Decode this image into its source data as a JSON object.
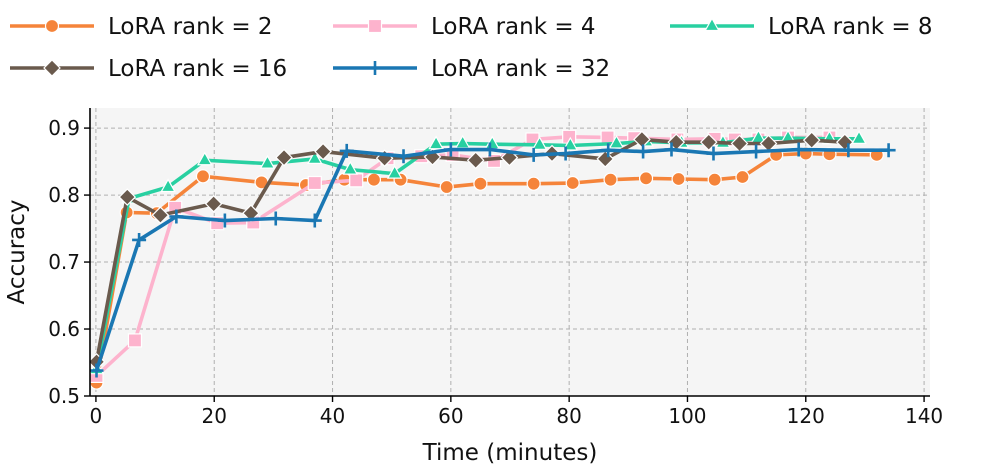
{
  "chart_data": {
    "type": "line",
    "title": "",
    "xlabel": "Time (minutes)",
    "ylabel": "Accuracy",
    "xlim": [
      -1,
      141
    ],
    "ylim": [
      0.5,
      0.93
    ],
    "xticks": [
      0,
      20,
      40,
      60,
      80,
      100,
      120,
      140
    ],
    "yticks": [
      0.5,
      0.6,
      0.7,
      0.8,
      0.9
    ],
    "xtick_labels": [
      "0",
      "20",
      "40",
      "60",
      "80",
      "100",
      "120",
      "140"
    ],
    "ytick_labels": [
      "0.5",
      "0.6",
      "0.7",
      "0.8",
      "0.9"
    ],
    "grid": true,
    "legend_position": "top",
    "series": [
      {
        "name": "LoRA rank = 2",
        "color": "#f5843a",
        "marker": "circle",
        "x": [
          0.1,
          5.2,
          10.3,
          18.1,
          28.0,
          35.5,
          42.0,
          47.0,
          51.5,
          59.3,
          65.0,
          74.0,
          80.6,
          87.0,
          93.0,
          98.5,
          104.6,
          109.3,
          115.0,
          120.0,
          124.0,
          132.0
        ],
        "y": [
          0.52,
          0.774,
          0.773,
          0.828,
          0.819,
          0.815,
          0.823,
          0.823,
          0.823,
          0.812,
          0.817,
          0.817,
          0.818,
          0.823,
          0.825,
          0.824,
          0.823,
          0.827,
          0.86,
          0.862,
          0.861,
          0.86
        ]
      },
      {
        "name": "LoRA rank = 4",
        "color": "#fdb3cd",
        "marker": "square",
        "x": [
          0.1,
          6.6,
          13.4,
          20.5,
          26.6,
          37.0,
          44.0,
          49.3,
          55.0,
          60.3,
          67.3,
          73.8,
          80.0,
          86.5,
          91.0,
          98.3,
          104.6,
          108.0,
          112.0,
          117.0,
          124.0
        ],
        "y": [
          0.53,
          0.583,
          0.781,
          0.758,
          0.759,
          0.818,
          0.822,
          0.855,
          0.858,
          0.86,
          0.851,
          0.883,
          0.887,
          0.886,
          0.885,
          0.883,
          0.884,
          0.883,
          0.883,
          0.886,
          0.886
        ]
      },
      {
        "name": "LoRA rank = 8",
        "color": "#28d0a1",
        "marker": "triangle",
        "x": [
          0.1,
          5.6,
          12.2,
          18.4,
          29.0,
          37.0,
          43.0,
          50.5,
          57.5,
          62.0,
          67.0,
          75.0,
          80.2,
          88.0,
          93.0,
          99.0,
          106.0,
          112.0,
          117.0,
          124.0,
          129.0
        ],
        "y": [
          0.54,
          0.795,
          0.812,
          0.852,
          0.847,
          0.854,
          0.838,
          0.832,
          0.876,
          0.877,
          0.876,
          0.875,
          0.874,
          0.877,
          0.88,
          0.878,
          0.878,
          0.885,
          0.885,
          0.884,
          0.884
        ]
      },
      {
        "name": "LoRA rank = 16",
        "color": "#6a5a4d",
        "marker": "diamond",
        "x": [
          0.1,
          5.3,
          10.9,
          19.9,
          26.2,
          31.8,
          38.4,
          48.8,
          56.9,
          64.2,
          69.9,
          77.1,
          86.1,
          92.3,
          98.1,
          103.6,
          108.8,
          113.7,
          121.0,
          126.6
        ],
        "y": [
          0.551,
          0.797,
          0.77,
          0.787,
          0.773,
          0.856,
          0.865,
          0.855,
          0.857,
          0.852,
          0.856,
          0.862,
          0.854,
          0.883,
          0.879,
          0.879,
          0.877,
          0.877,
          0.882,
          0.879
        ]
      },
      {
        "name": "LoRA rank = 32",
        "color": "#1a77b3",
        "marker": "plus",
        "x": [
          0.1,
          7.3,
          13.6,
          21.8,
          30.4,
          37.0,
          42.4,
          52.0,
          60.0,
          66.6,
          74.0,
          79.4,
          86.6,
          92.5,
          97.3,
          104.4,
          111.6,
          118.8,
          127.2,
          134.0
        ],
        "y": [
          0.538,
          0.733,
          0.768,
          0.762,
          0.765,
          0.762,
          0.866,
          0.858,
          0.868,
          0.868,
          0.86,
          0.862,
          0.867,
          0.865,
          0.868,
          0.862,
          0.865,
          0.868,
          0.867,
          0.867
        ]
      }
    ]
  }
}
